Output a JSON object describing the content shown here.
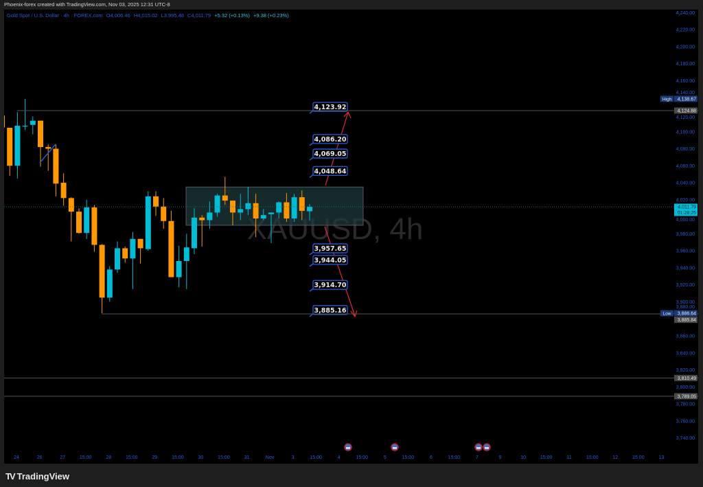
{
  "caption": "Phoenix-forex created with TradingView.com, Nov 03, 2025 12:31 UTC-8",
  "legend": {
    "symbol": "Gold Spot / U.S. Dollar · 4h · FOREX.com",
    "open": "O4,006.46",
    "high": "H4,015.02",
    "low": "L3,995.48",
    "close": "C4,011.79",
    "change": "+5.32 (+0.13%)",
    "change2": "+9.38 (+0.23%)"
  },
  "watermark": "XAUUSD, 4h",
  "footer": {
    "logo_text": "TradingView"
  },
  "colors": {
    "up": "#00bcd4",
    "down": "#ff9800",
    "axis_text": "#2a5bd7",
    "label_border": "#2a5bd7",
    "arrow": "#e0283c",
    "zone_fill": "#1f3a3d"
  },
  "chart_data": {
    "type": "candlestick",
    "ylim": [
      3730,
      4250
    ],
    "y_ticks": [
      "4,240.00",
      "4,220.00",
      "4,200.00",
      "4,180.00",
      "4,160.00",
      "4,140.00",
      "4,120.00",
      "4,100.00",
      "4,080.00",
      "4,060.00",
      "4,040.00",
      "4,020.00",
      "4,000.00",
      "3,980.00",
      "3,960.00",
      "3,940.00",
      "3,920.00",
      "3,900.00",
      "3,880.00",
      "3,860.00",
      "3,840.00",
      "3,820.00",
      "3,800.00",
      "3,780.00",
      "3,760.00",
      "3,740.00"
    ],
    "x_ticks": [
      "24",
      "26",
      "27",
      "15:00",
      "28",
      "15:00",
      "29",
      "15:00",
      "30",
      "15:00",
      "31",
      "Nov",
      "3",
      "15:00",
      "4",
      "15:00",
      "5",
      "15:00",
      "6",
      "15:00",
      "7",
      "9",
      "10",
      "15:00",
      "11",
      "15:00",
      "12",
      "15:00",
      "13"
    ],
    "ohlc": [
      [
        4119,
        4120,
        4104,
        4105
      ],
      [
        4104.6,
        4104.6,
        4048,
        4060
      ],
      [
        4060,
        4123,
        4045,
        4107
      ],
      [
        4106,
        4138.67,
        4102,
        4107
      ],
      [
        4108,
        4118,
        4097,
        4113
      ],
      [
        4113,
        4113,
        4059,
        4082
      ],
      [
        4082,
        4085,
        4054,
        4080
      ],
      [
        4080,
        4085,
        4024,
        4039
      ],
      [
        4040,
        4051,
        4013,
        4022
      ],
      [
        4022,
        4023,
        3971,
        4006
      ],
      [
        4006,
        4010,
        3980,
        3981
      ],
      [
        3981,
        4020,
        3974,
        4011
      ],
      [
        4011,
        4014,
        3959,
        3967
      ],
      [
        3967,
        3968,
        3886.64,
        3905
      ],
      [
        3905,
        3942,
        3900,
        3938
      ],
      [
        3938,
        3971,
        3934,
        3963
      ],
      [
        3963,
        3965,
        3946,
        3951
      ],
      [
        3951,
        3982,
        3915,
        3974
      ],
      [
        3974,
        3974,
        3945,
        3963
      ],
      [
        3962,
        4030,
        3960,
        4024
      ],
      [
        4024,
        4030,
        4001,
        4012
      ],
      [
        4012,
        4022,
        3986,
        3995
      ],
      [
        3995,
        4007,
        3929,
        3929
      ],
      [
        3929,
        3966,
        3917,
        3948
      ],
      [
        3948,
        3980,
        3915,
        3964
      ],
      [
        3963,
        4010,
        3956,
        3999
      ],
      [
        3999,
        4002,
        3965,
        3996
      ],
      [
        3996,
        4018,
        3986,
        4005
      ],
      [
        4005,
        4027,
        4000,
        4025
      ],
      [
        4025,
        4047,
        4014,
        4019
      ],
      [
        4019,
        4019,
        3990,
        4005
      ],
      [
        4005,
        4027,
        3996,
        4009
      ],
      [
        4009,
        4035,
        4002,
        4016
      ],
      [
        4016,
        4027,
        3976,
        3998
      ],
      [
        3998,
        4009,
        3996,
        4002
      ],
      [
        4003,
        4005,
        3969,
        4005
      ],
      [
        4005,
        4018,
        3998,
        4017
      ],
      [
        4017,
        4028,
        3994,
        3998
      ],
      [
        3998,
        4027,
        3994,
        4023
      ],
      [
        4023,
        4031,
        3996,
        4007
      ],
      [
        4006.46,
        4015.02,
        3995.48,
        4011.79
      ]
    ],
    "price_tags": [
      {
        "label": "High",
        "value": "4,138.67",
        "price": 4138.67,
        "style": "blue"
      },
      {
        "label": "",
        "value": "4,124.88",
        "price": 4124.88,
        "style": "gray"
      },
      {
        "label": "",
        "value": "4,011.79",
        "sub": "01:28:25",
        "price": 4011.79,
        "style": "cyan"
      },
      {
        "label": "Low",
        "value": "3,886.64",
        "price": 3886.64,
        "style": "blue"
      },
      {
        "label": "",
        "value": "3,885.84",
        "price": 3885.84,
        "style": "gray"
      },
      {
        "label": "",
        "value": "3,810.49",
        "price": 3810.49,
        "style": "gray"
      },
      {
        "label": "",
        "value": "3,789.05",
        "price": 3789.05,
        "style": "gray"
      }
    ],
    "horizontal_lines": [
      4124.88,
      3885.84,
      3810.49,
      3789.05
    ],
    "current_price": 4011.79,
    "zone": {
      "top": 4035,
      "bottom": 3990
    },
    "targets": [
      {
        "text": "4,123.92",
        "price": 4123.92
      },
      {
        "text": "4,086.20",
        "price": 4086.2
      },
      {
        "text": "4,069.05",
        "price": 4069.05
      },
      {
        "text": "4,048.64",
        "price": 4048.64
      },
      {
        "text": "3,957.65",
        "price": 3957.65
      },
      {
        "text": "3,944.05",
        "price": 3944.05
      },
      {
        "text": "3,914.70",
        "price": 3914.7
      },
      {
        "text": "3,885.16",
        "price": 3885.16
      }
    ],
    "event_icons": [
      "us-flag-icon",
      "us-flag-icon",
      "us-flag-icon",
      "us-flag-icon"
    ]
  }
}
